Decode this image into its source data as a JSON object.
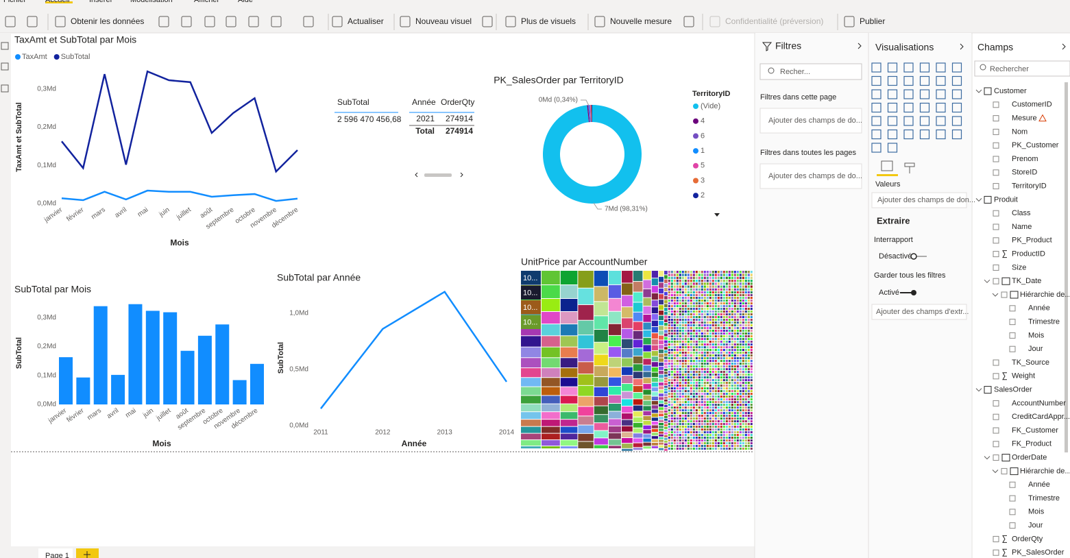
{
  "ribbon": {
    "menu": [
      "Fichier",
      "Accueil",
      "Insérer",
      "Modélisation",
      "Afficher",
      "Aide"
    ],
    "buttons": [
      "Obtenir les données",
      "Actualiser",
      "Nouveau visuel",
      "Plus de visuels",
      "Nouvelle mesure",
      "Confidentialité (préversion)",
      "Publier"
    ]
  },
  "chart_data": [
    {
      "type": "line",
      "title": "TaxAmt et SubTotal par Mois",
      "x_label": "Mois",
      "y_label": "TaxAmt et SubTotal",
      "categories": [
        "janvier",
        "février",
        "mars",
        "avril",
        "mai",
        "juin",
        "juillet",
        "août",
        "septembre",
        "octobre",
        "novembre",
        "décembre"
      ],
      "series": [
        {
          "name": "TaxAmt",
          "color": "#118dff",
          "values": [
            0.014,
            0.009,
            0.031,
            0.011,
            0.034,
            0.031,
            0.031,
            0.018,
            0.022,
            0.025,
            0.007,
            0.013
          ]
        },
        {
          "name": "SubTotal",
          "color": "#12239e",
          "values": [
            0.163,
            0.093,
            0.339,
            0.102,
            0.346,
            0.323,
            0.318,
            0.185,
            0.237,
            0.276,
            0.084,
            0.14
          ]
        }
      ],
      "ylim": [
        0,
        0.35
      ],
      "yticks": [
        {
          "value": 0,
          "label": "0,0Md"
        },
        {
          "value": 0.1,
          "label": "0,1Md"
        },
        {
          "value": 0.2,
          "label": "0,2Md"
        },
        {
          "value": 0.3,
          "label": "0,3Md"
        }
      ],
      "grid": false,
      "legend": "top-left"
    },
    {
      "type": "table",
      "columns": [
        "SubTotal"
      ],
      "rows": [
        [
          "2 596 470 456,68"
        ]
      ]
    },
    {
      "type": "matrix",
      "columns": [
        "Année",
        "OrderQty"
      ],
      "rows": [
        [
          "2021",
          "274914"
        ]
      ],
      "total": [
        "Total",
        "274914"
      ]
    },
    {
      "type": "pie",
      "title": "PK_SalesOrder par TerritoryID",
      "legend_title": "TerritoryID",
      "legend": "right",
      "categories": [
        "(Vide)",
        "4",
        "6",
        "1",
        "5",
        "3",
        "2"
      ],
      "colors": [
        "#12c0ee",
        "#6b007b",
        "#744ec2",
        "#118dff",
        "#e044a7",
        "#e66c37",
        "#12239e"
      ],
      "values": [
        98.31,
        0.34,
        0.3,
        0.28,
        0.27,
        0.26,
        0.24
      ],
      "value_labels": [
        "7Md (98,31%)",
        "0Md (0,34%)",
        null,
        null,
        null,
        null,
        null
      ]
    },
    {
      "type": "bar",
      "title": "SubTotal par Mois",
      "x_label": "Mois",
      "y_label": "SubTotal",
      "color": "#118dff",
      "categories": [
        "janvier",
        "février",
        "mars",
        "avril",
        "mai",
        "juin",
        "juillet",
        "août",
        "septembre",
        "octobre",
        "novembre",
        "décembre"
      ],
      "values": [
        0.163,
        0.093,
        0.339,
        0.102,
        0.346,
        0.323,
        0.318,
        0.185,
        0.237,
        0.276,
        0.084,
        0.14
      ],
      "ylim": [
        0,
        0.35
      ],
      "yticks": [
        {
          "value": 0,
          "label": "0,0Md"
        },
        {
          "value": 0.1,
          "label": "0,1Md"
        },
        {
          "value": 0.2,
          "label": "0,2Md"
        },
        {
          "value": 0.3,
          "label": "0,3Md"
        }
      ],
      "grid": false
    },
    {
      "type": "line",
      "title": "SubTotal par Année",
      "x_label": "Année",
      "y_label": "SubTotal",
      "color": "#118dff",
      "x": [
        2011,
        2012,
        2013,
        2014
      ],
      "values": [
        0.152,
        0.86,
        1.19,
        0.39
      ],
      "xlim": [
        2011,
        2014
      ],
      "xticks": [
        2011,
        2012,
        2013,
        2014
      ],
      "ylim": [
        0,
        1.2
      ],
      "yticks": [
        {
          "value": 0,
          "label": "0,0Md"
        },
        {
          "value": 0.5,
          "label": "0,5Md"
        },
        {
          "value": 1,
          "label": "1,0Md"
        }
      ],
      "grid": false
    },
    {
      "type": "treemap",
      "title": "UnitPrice par AccountNumber",
      "labels": [
        "10...",
        "10...",
        "10...",
        "10..."
      ]
    }
  ],
  "filters": {
    "title": "Filtres",
    "search": "Recher...",
    "sections": [
      {
        "title": "Filtres dans cette page",
        "placeholder": "Ajouter des champs de do..."
      },
      {
        "title": "Filtres dans toutes les pages",
        "placeholder": "Ajouter des champs de do..."
      }
    ]
  },
  "visualizations": {
    "title": "Visualisations",
    "well": "Valeurs",
    "well_placeholder": "Ajouter des champs de don...",
    "drill_title": "Extraire",
    "cross_report": "Interrapport",
    "cross_report_state": "Désactivé",
    "keep_filters": "Garder tous les filtres",
    "keep_filters_state": "Activé",
    "drill_placeholder": "Ajouter des champs d'extr..."
  },
  "fields": {
    "title": "Champs",
    "search": "Rechercher",
    "items": [
      {
        "label": "Customer",
        "kind": "table"
      },
      {
        "label": "CustomerID",
        "kind": "field"
      },
      {
        "label": "Mesure",
        "kind": "warning"
      },
      {
        "label": "Nom",
        "kind": "field"
      },
      {
        "label": "PK_Customer",
        "kind": "field"
      },
      {
        "label": "Prenom",
        "kind": "field"
      },
      {
        "label": "StoreID",
        "kind": "field"
      },
      {
        "label": "TerritoryID",
        "kind": "field"
      },
      {
        "label": "Produit",
        "kind": "table"
      },
      {
        "label": "Class",
        "kind": "field"
      },
      {
        "label": "Name",
        "kind": "field"
      },
      {
        "label": "PK_Product",
        "kind": "field"
      },
      {
        "label": "ProductID",
        "kind": "sum"
      },
      {
        "label": "Size",
        "kind": "field"
      },
      {
        "label": "TK_Date",
        "kind": "date"
      },
      {
        "label": "Hiérarchie de...",
        "kind": "hierarchy"
      },
      {
        "label": "Année",
        "kind": "level"
      },
      {
        "label": "Trimestre",
        "kind": "level"
      },
      {
        "label": "Mois",
        "kind": "level"
      },
      {
        "label": "Jour",
        "kind": "level"
      },
      {
        "label": "TK_Source",
        "kind": "field"
      },
      {
        "label": "Weight",
        "kind": "sum"
      },
      {
        "label": "SalesOrder",
        "kind": "table"
      },
      {
        "label": "AccountNumber",
        "kind": "field"
      },
      {
        "label": "CreditCardAppr...",
        "kind": "field"
      },
      {
        "label": "FK_Customer",
        "kind": "field"
      },
      {
        "label": "FK_Product",
        "kind": "field"
      },
      {
        "label": "OrderDate",
        "kind": "date"
      },
      {
        "label": "Hiérarchie de...",
        "kind": "hierarchy"
      },
      {
        "label": "Année",
        "kind": "level"
      },
      {
        "label": "Trimestre",
        "kind": "level"
      },
      {
        "label": "Mois",
        "kind": "level"
      },
      {
        "label": "Jour",
        "kind": "level"
      },
      {
        "label": "OrderQty",
        "kind": "sum"
      },
      {
        "label": "PK_SalesOrder",
        "kind": "sum"
      }
    ]
  },
  "pages": {
    "tabs": [
      "Page 1"
    ]
  }
}
